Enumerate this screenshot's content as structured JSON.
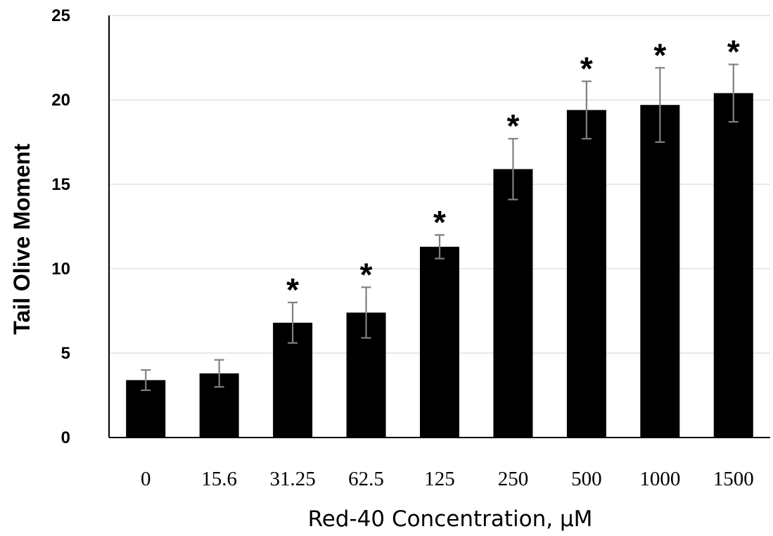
{
  "chart_data": {
    "type": "bar",
    "title": "",
    "xlabel": "Red-40 Concentration, μM",
    "ylabel": "Tail Olive Moment",
    "categories": [
      "0",
      "15.6",
      "31.25",
      "62.5",
      "125",
      "250",
      "500",
      "1000",
      "1500"
    ],
    "values": [
      3.4,
      3.8,
      6.8,
      7.4,
      11.3,
      15.9,
      19.4,
      19.7,
      20.4
    ],
    "error": [
      0.6,
      0.8,
      1.2,
      1.5,
      0.7,
      1.8,
      1.7,
      2.2,
      1.7
    ],
    "significance": [
      "",
      "",
      "*",
      "*",
      "*",
      "*",
      "*",
      "*",
      "*"
    ],
    "ylim": [
      0,
      25
    ],
    "yticks": [
      0,
      5,
      10,
      15,
      20,
      25
    ],
    "grid": true,
    "colors": {
      "bar": "#000000",
      "error_bar": "#808080",
      "grid": "#d9d9d9"
    }
  }
}
